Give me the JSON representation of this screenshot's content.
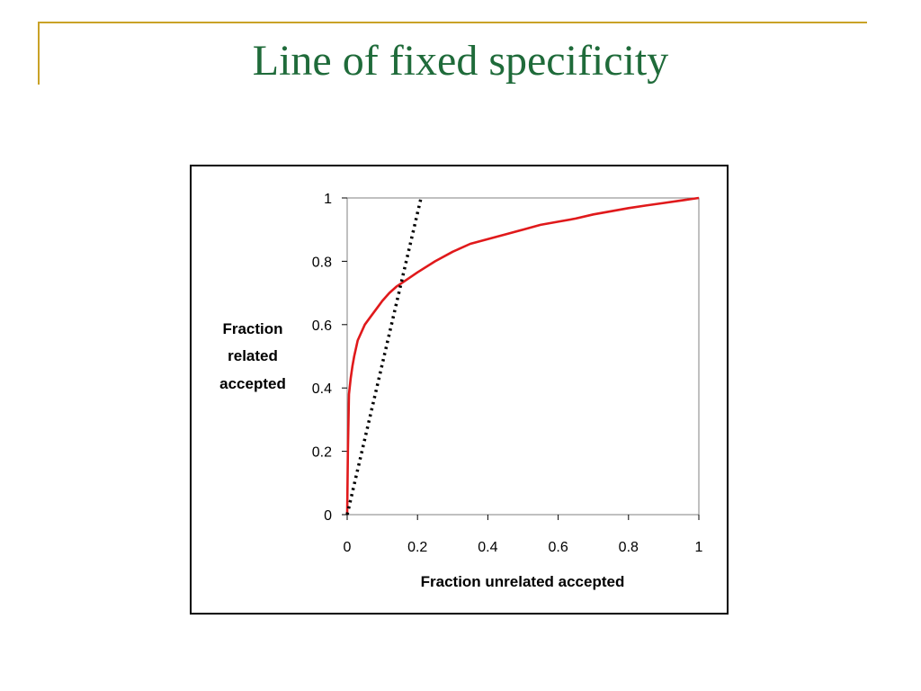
{
  "slide": {
    "title": "Line of fixed specificity",
    "title_color": "#1F6B3A",
    "accent_color": "#C9A227"
  },
  "chart_data": {
    "type": "line",
    "title": "",
    "xlabel": "Fraction unrelated accepted",
    "ylabel": [
      "Fraction",
      "related",
      "accepted"
    ],
    "xlim": [
      0,
      1
    ],
    "ylim": [
      0,
      1
    ],
    "xticks": [
      "0",
      "0.2",
      "0.4",
      "0.6",
      "0.8",
      "1"
    ],
    "yticks": [
      "0",
      "0.2",
      "0.4",
      "0.6",
      "0.8",
      "1"
    ],
    "grid": false,
    "legend": "none",
    "series": [
      {
        "style": "solid",
        "color": "#E0191B",
        "x": [
          0,
          0.002,
          0.005,
          0.01,
          0.015,
          0.02,
          0.03,
          0.05,
          0.07,
          0.09,
          0.1,
          0.12,
          0.14,
          0.16,
          0.2,
          0.25,
          0.3,
          0.35,
          0.4,
          0.45,
          0.5,
          0.55,
          0.6,
          0.65,
          0.7,
          0.75,
          0.8,
          0.85,
          0.9,
          0.95,
          0.98,
          1.0
        ],
        "y": [
          0,
          0.2,
          0.38,
          0.43,
          0.47,
          0.5,
          0.55,
          0.6,
          0.63,
          0.66,
          0.675,
          0.7,
          0.72,
          0.735,
          0.765,
          0.8,
          0.83,
          0.855,
          0.87,
          0.885,
          0.9,
          0.915,
          0.925,
          0.935,
          0.948,
          0.958,
          0.968,
          0.976,
          0.984,
          0.992,
          0.997,
          1.0
        ]
      },
      {
        "style": "dotted",
        "color": "#000000",
        "x": [
          0,
          0.21
        ],
        "y": [
          0,
          1
        ]
      }
    ]
  }
}
